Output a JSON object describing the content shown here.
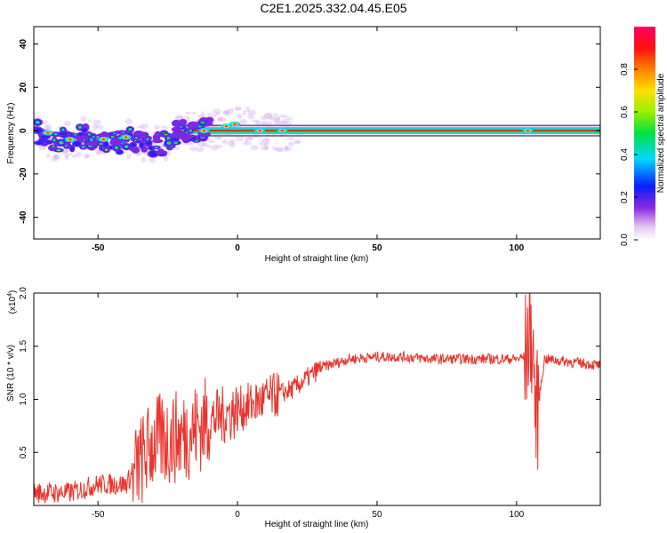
{
  "title": "C2E1.2025.332.04.45.E05",
  "colorbar": {
    "label": "Normalized spectral amplitude",
    "ticks": [
      "0.0",
      "0.2",
      "0.4",
      "0.6",
      "0.8"
    ],
    "range": [
      0,
      1
    ]
  },
  "chart_data": [
    {
      "type": "heatmap",
      "xlabel": "Height of straight line (km)",
      "ylabel": "Frequency (Hz)",
      "xlim": [
        -73,
        130
      ],
      "ylim": [
        -50,
        48
      ],
      "xticks": [
        -50,
        0,
        50,
        100
      ],
      "xtick_labels": [
        "-50",
        "0",
        "50",
        "100"
      ],
      "yticks": [
        -40,
        -20,
        0,
        20,
        40
      ],
      "ytick_labels": [
        "-40",
        "-20",
        "0",
        "20",
        "40"
      ],
      "colormap": "rainbow (white-violet-blue-cyan-green-yellow-red)",
      "ridge": [
        [
          -73,
          0
        ],
        [
          -65,
          -5
        ],
        [
          -55,
          -3
        ],
        [
          -45,
          -6
        ],
        [
          -38,
          -4
        ],
        [
          -30,
          -8
        ],
        [
          -20,
          0
        ],
        [
          -10,
          0
        ],
        [
          0,
          2
        ],
        [
          10,
          0
        ],
        [
          20,
          0
        ],
        [
          130,
          0
        ]
      ],
      "grid": false
    },
    {
      "type": "line",
      "xlabel": "Height of straight line (km)",
      "ylabel": "SNR (10 * v/v)",
      "y_multiplier": "(x10",
      "y_multiplier_exp": "4",
      "xlim": [
        -73,
        130
      ],
      "ylim": [
        0,
        2.0
      ],
      "xticks": [
        -50,
        0,
        50,
        100
      ],
      "xtick_labels": [
        "-50",
        "0",
        "50",
        "100"
      ],
      "yticks": [
        0.5,
        1.0,
        1.5,
        2.0
      ],
      "ytick_labels": [
        "0.5",
        "1.0",
        "1.5",
        "2.0"
      ],
      "series": [
        {
          "color": "#e8342c",
          "trend": [
            [
              -73,
              0.12
            ],
            [
              -60,
              0.12
            ],
            [
              -50,
              0.2
            ],
            [
              -40,
              0.2
            ],
            [
              -35,
              0.4
            ],
            [
              -30,
              0.6
            ],
            [
              -20,
              0.65
            ],
            [
              -10,
              0.8
            ],
            [
              0,
              0.9
            ],
            [
              10,
              1.0
            ],
            [
              20,
              1.1
            ],
            [
              30,
              1.3
            ],
            [
              40,
              1.38
            ],
            [
              50,
              1.4
            ],
            [
              60,
              1.4
            ],
            [
              70,
              1.38
            ],
            [
              80,
              1.38
            ],
            [
              90,
              1.38
            ],
            [
              100,
              1.38
            ],
            [
              103,
              1.4
            ],
            [
              105,
              1.7
            ],
            [
              106,
              1.4
            ],
            [
              107,
              0.8
            ],
            [
              110,
              1.38
            ],
            [
              120,
              1.35
            ],
            [
              130,
              1.32
            ]
          ]
        }
      ],
      "grid": false
    }
  ]
}
